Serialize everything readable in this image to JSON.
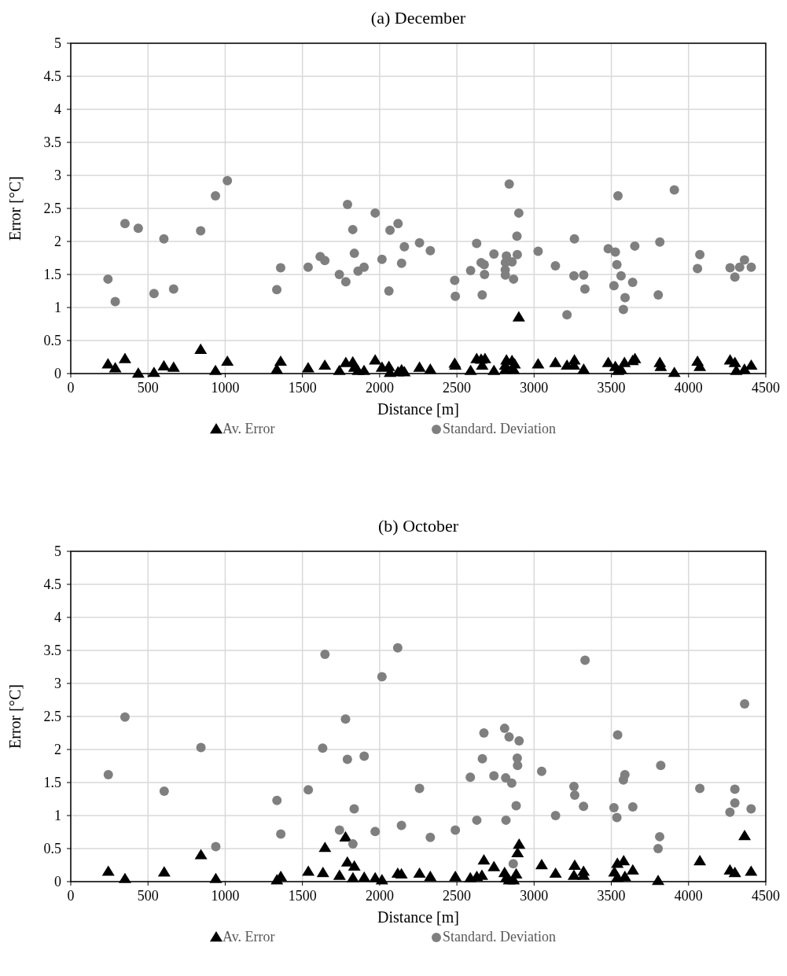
{
  "chart_data": [
    {
      "type": "scatter",
      "title": "(a) December",
      "xlabel": "Distance [m]",
      "ylabel": "Error [°C]",
      "xlim": [
        0,
        4500
      ],
      "xticks": [
        0,
        500,
        1000,
        1500,
        2000,
        2500,
        3000,
        3500,
        4000,
        4500
      ],
      "ylim": [
        0,
        5
      ],
      "yticks": [
        0,
        0.5,
        1,
        1.5,
        2,
        2.5,
        3,
        3.5,
        4,
        4.5,
        5
      ],
      "grid": true,
      "legend": "bottom",
      "series": [
        {
          "name": "Av. Error",
          "color": "#000000",
          "marker": "triangle",
          "x": [
            241,
            288,
            351,
            437,
            539,
            603,
            666,
            841,
            937,
            1014,
            1334,
            1359,
            1537,
            1645,
            1739,
            1781,
            1826,
            1836,
            1860,
            1899,
            1971,
            2015,
            2060,
            2067,
            2119,
            2142,
            2160,
            2258,
            2328,
            2486,
            2490,
            2589,
            2628,
            2657,
            2682,
            2664,
            2740,
            2821,
            2814,
            2857,
            2813,
            2874,
            2867,
            2901,
            3026,
            3138,
            3213,
            3261,
            3258,
            3321,
            3480,
            3526,
            3543,
            3585,
            3563,
            3653,
            3638,
            3814,
            3820,
            3908,
            4058,
            4073,
            4269,
            4300,
            4309,
            4362,
            4406
          ],
          "values": [
            0.14,
            0.08,
            0.22,
            0,
            0.01,
            0.11,
            0.09,
            0.36,
            0.04,
            0.18,
            0.06,
            0.18,
            0.08,
            0.12,
            0.04,
            0.16,
            0.17,
            0.09,
            0.04,
            0.04,
            0.2,
            0.09,
            0.1,
            0.01,
            0.02,
            0.05,
            0.02,
            0.09,
            0.06,
            0.15,
            0.12,
            0.04,
            0.22,
            0.21,
            0.22,
            0.12,
            0.04,
            0.2,
            0.06,
            0.19,
            0.12,
            0.14,
            0.06,
            0.85,
            0.14,
            0.16,
            0.12,
            0.2,
            0.12,
            0.06,
            0.16,
            0.1,
            0.04,
            0.16,
            0.06,
            0.22,
            0.19,
            0.16,
            0.1,
            0.01,
            0.18,
            0.1,
            0.2,
            0.16,
            0.04,
            0.06,
            0.12
          ]
        },
        {
          "name": "Standard. Deviation",
          "color": "#7f7f7f",
          "marker": "circle",
          "x": [
            241,
            288,
            351,
            437,
            539,
            603,
            666,
            841,
            937,
            1014,
            1334,
            1359,
            1537,
            1615,
            1645,
            1739,
            1781,
            1792,
            1826,
            1836,
            1860,
            1899,
            1971,
            2015,
            2060,
            2067,
            2119,
            2142,
            2160,
            2258,
            2328,
            2486,
            2490,
            2589,
            2628,
            2657,
            2677,
            2679,
            2664,
            2740,
            2821,
            2814,
            2857,
            2813,
            2814,
            2867,
            2839,
            2901,
            2889,
            2891,
            3026,
            3138,
            3261,
            3258,
            3321,
            3329,
            3213,
            3480,
            3526,
            3543,
            3536,
            3563,
            3638,
            3517,
            3589,
            3578,
            3652,
            3814,
            3804,
            3908,
            4073,
            4058,
            4269,
            4331,
            4362,
            4406,
            4300
          ],
          "values": [
            1.43,
            1.09,
            2.27,
            2.2,
            1.21,
            2.04,
            1.28,
            2.16,
            2.69,
            2.92,
            1.27,
            1.6,
            1.61,
            1.77,
            1.71,
            1.5,
            1.39,
            2.56,
            2.18,
            1.82,
            1.55,
            1.61,
            2.43,
            1.73,
            1.25,
            2.17,
            2.27,
            1.67,
            1.92,
            1.98,
            1.86,
            1.41,
            1.17,
            1.56,
            1.97,
            1.68,
            1.65,
            1.5,
            1.19,
            1.81,
            1.78,
            1.68,
            1.69,
            1.57,
            1.49,
            1.43,
            2.87,
            2.43,
            2.08,
            1.8,
            1.85,
            1.63,
            2.04,
            1.48,
            1.49,
            1.28,
            0.89,
            1.89,
            1.84,
            2.69,
            1.65,
            1.48,
            1.38,
            1.33,
            1.15,
            0.97,
            1.93,
            1.99,
            1.19,
            2.78,
            1.8,
            1.59,
            1.6,
            1.61,
            1.72,
            1.61,
            1.46
          ]
        }
      ]
    },
    {
      "type": "scatter",
      "title": "(b) October",
      "xlabel": "Distance [m]",
      "ylabel": "Error [°C]",
      "xlim": [
        0,
        4500
      ],
      "xticks": [
        0,
        500,
        1000,
        1500,
        2000,
        2500,
        3000,
        3500,
        4000,
        4500
      ],
      "ylim": [
        0,
        5
      ],
      "yticks": [
        0,
        0.5,
        1,
        1.5,
        2,
        2.5,
        3,
        3.5,
        4,
        4.5,
        5
      ],
      "grid": true,
      "legend": "bottom",
      "series": [
        {
          "name": "Av. Error",
          "color": "#000000",
          "marker": "triangle",
          "x": [
            243,
            351,
            605,
            843,
            939,
            1335,
            1360,
            1538,
            1633,
            1646,
            1779,
            1740,
            1791,
            1836,
            1827,
            1900,
            1971,
            2015,
            2117,
            2141,
            2258,
            2328,
            2490,
            2587,
            2629,
            2662,
            2675,
            2740,
            2809,
            2819,
            2838,
            2884,
            2893,
            2903,
            2867,
            3049,
            3139,
            3263,
            3258,
            3320,
            3320,
            3539,
            3580,
            3520,
            3539,
            3588,
            3639,
            3803,
            4073,
            4363,
            4268,
            4300,
            4405
          ],
          "values": [
            0.15,
            0.04,
            0.14,
            0.4,
            0.04,
            0.02,
            0.07,
            0.15,
            0.13,
            0.51,
            0.67,
            0.09,
            0.29,
            0.23,
            0.05,
            0.06,
            0.05,
            0.02,
            0.12,
            0.11,
            0.12,
            0.07,
            0.07,
            0.05,
            0.07,
            0.09,
            0.32,
            0.22,
            0.13,
            0.05,
            0.02,
            0.11,
            0.43,
            0.56,
            0.02,
            0.25,
            0.12,
            0.24,
            0.09,
            0.15,
            0.09,
            0.27,
            0.31,
            0.14,
            0.06,
            0.07,
            0.17,
            0.01,
            0.31,
            0.69,
            0.17,
            0.13,
            0.15
          ]
        },
        {
          "name": "Standard. Deviation",
          "color": "#7f7f7f",
          "marker": "circle",
          "x": [
            243,
            351,
            605,
            843,
            939,
            1335,
            1360,
            1538,
            1646,
            1631,
            1779,
            1791,
            1900,
            1835,
            1740,
            1827,
            1971,
            2015,
            2117,
            2141,
            2258,
            2328,
            2490,
            2587,
            2629,
            2675,
            2665,
            2740,
            2809,
            2838,
            2903,
            2891,
            2893,
            2816,
            2855,
            2884,
            2818,
            2865,
            3049,
            3330,
            3139,
            3258,
            3263,
            3320,
            3541,
            3588,
            3578,
            3517,
            3536,
            3639,
            3820,
            3813,
            3803,
            4073,
            4300,
            4300,
            4268,
            4405,
            4363
          ],
          "values": [
            1.62,
            2.49,
            1.37,
            2.03,
            0.53,
            1.23,
            0.72,
            1.39,
            3.44,
            2.02,
            2.46,
            1.85,
            1.9,
            1.1,
            0.78,
            0.57,
            0.76,
            3.1,
            3.54,
            0.85,
            1.41,
            0.67,
            0.78,
            1.58,
            0.93,
            2.25,
            1.86,
            1.6,
            2.32,
            2.19,
            2.13,
            1.87,
            1.76,
            1.57,
            1.49,
            1.15,
            0.93,
            0.27,
            1.67,
            3.35,
            1,
            1.44,
            1.31,
            1.14,
            2.22,
            1.62,
            1.54,
            1.12,
            0.97,
            1.13,
            1.76,
            0.68,
            0.5,
            1.41,
            1.4,
            1.19,
            1.05,
            1.1,
            2.69
          ]
        }
      ]
    }
  ]
}
